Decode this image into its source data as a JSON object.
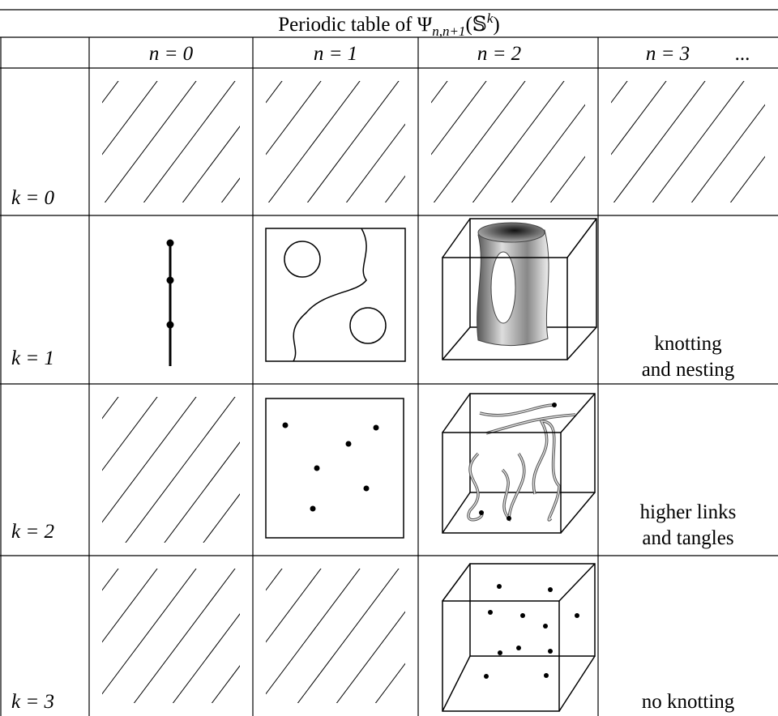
{
  "title": {
    "main": "Periodic table of Ψ",
    "subscript": "n,n+1",
    "open": "(𝕊",
    "superscript": "k",
    "close": ")"
  },
  "columns": [
    "n = 0",
    "n = 1",
    "n = 2",
    "n = 3"
  ],
  "ellipsis": "...",
  "rows": [
    "k = 0",
    "k = 1",
    "k = 2",
    "k = 3"
  ],
  "notes": {
    "k1": [
      "knotting",
      "and nesting"
    ],
    "k2": [
      "higher links",
      "and tangles"
    ],
    "k3": [
      "no knotting"
    ]
  }
}
